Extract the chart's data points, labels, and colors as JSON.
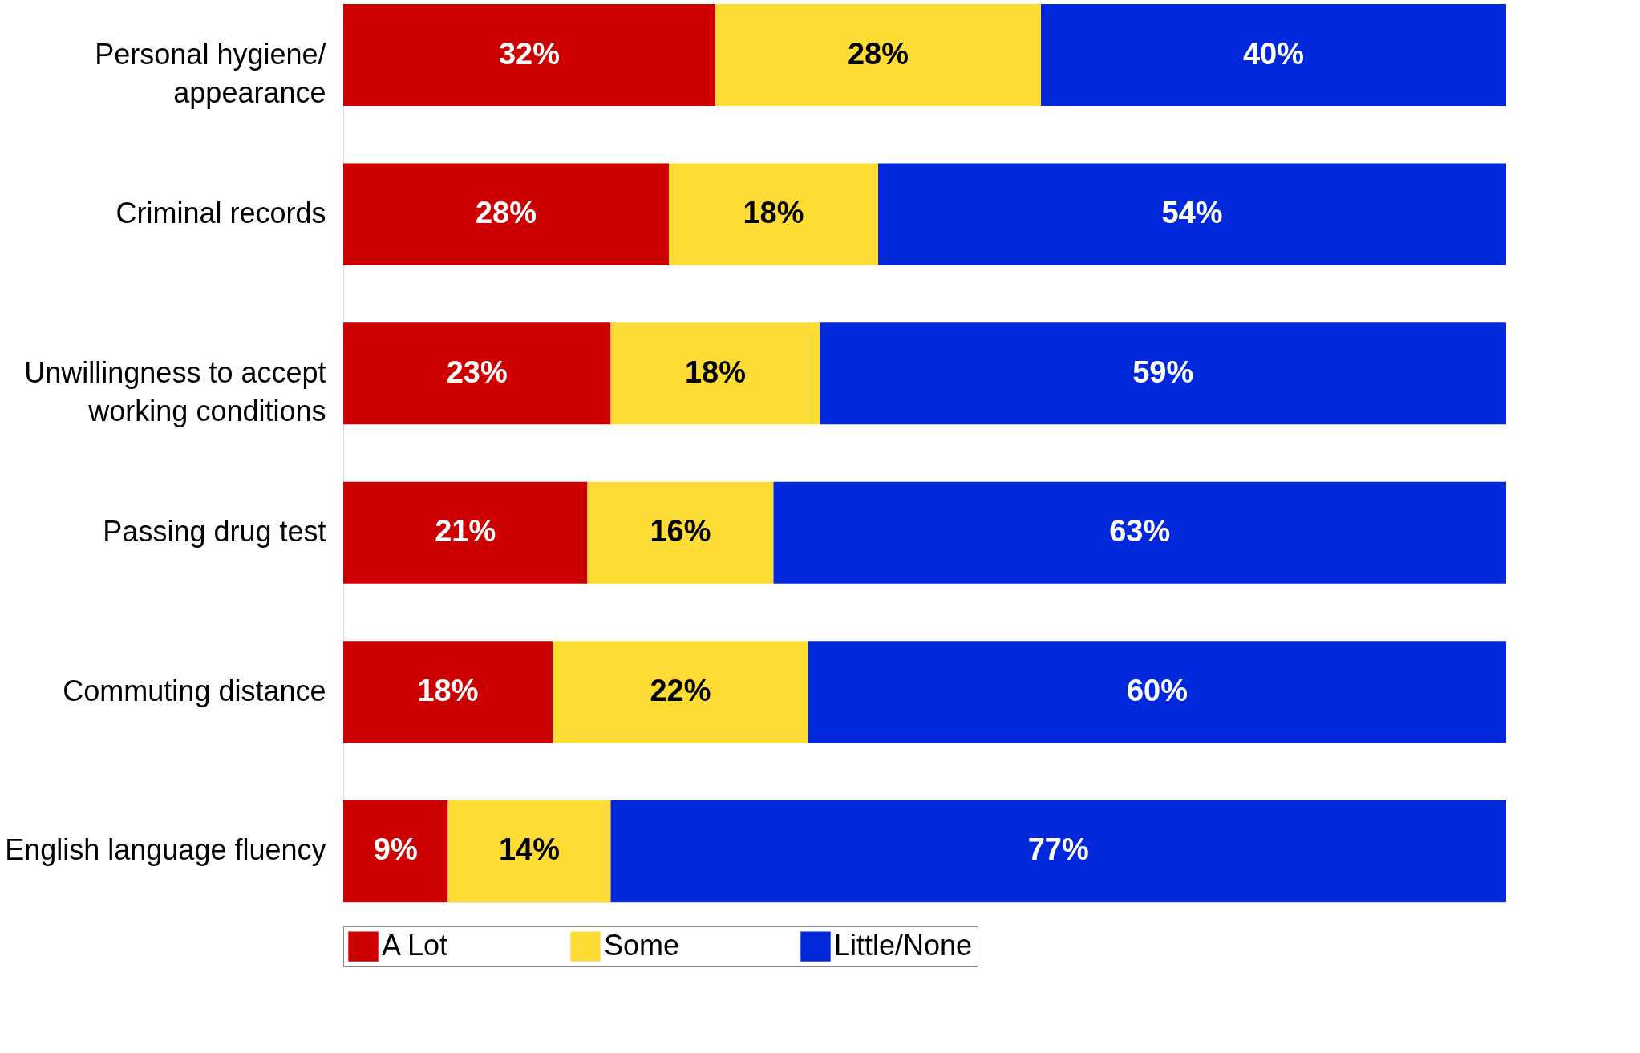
{
  "chart_data": {
    "type": "bar",
    "orientation": "horizontal",
    "stacked": true,
    "xlim": [
      0,
      100
    ],
    "tick_labels": "y",
    "legend": "bottom",
    "categories": [
      "Personal hygiene/ appearance",
      "Criminal records",
      "Unwillingness to accept working conditions",
      "Passing drug test",
      "Commuting distance",
      "English language fluency"
    ],
    "series": [
      {
        "name": "A Lot",
        "color": "#cc0000",
        "values": [
          32,
          28,
          23,
          21,
          18,
          9
        ],
        "value_labels": [
          "32%",
          "28%",
          "23%",
          "21%",
          "18%",
          "9%"
        ]
      },
      {
        "name": "Some",
        "color": "#fddc35",
        "values": [
          28,
          18,
          18,
          16,
          22,
          14
        ],
        "value_labels": [
          "28%",
          "18%",
          "18%",
          "16%",
          "22%",
          "14%"
        ]
      },
      {
        "name": "Little/None",
        "color": "#0228dc",
        "values": [
          40,
          54,
          59,
          63,
          60,
          77
        ],
        "value_labels": [
          "40%",
          "54%",
          "59%",
          "63%",
          "60%",
          "77%"
        ]
      }
    ]
  }
}
